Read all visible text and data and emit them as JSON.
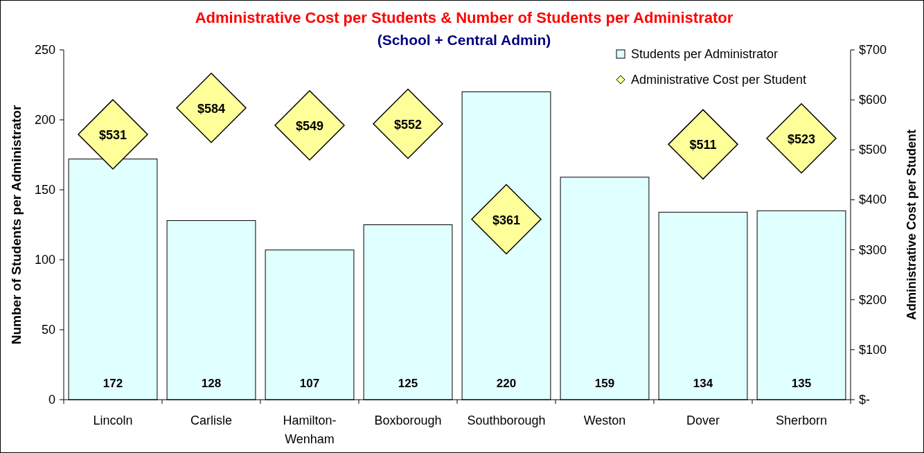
{
  "chart_data": {
    "type": "bar",
    "title": "Administrative Cost per Students & Number of Students per Administrator",
    "subtitle": "(School + Central Admin)",
    "ylabel": "Number of Students per Administrator",
    "y2label": "Administrative Cost per Student",
    "categories": [
      "Lincoln",
      "Carlisle",
      "Hamilton-Wenham",
      "Boxborough",
      "Southborough",
      "Weston",
      "Dover",
      "Sherborn"
    ],
    "series": [
      {
        "name": "Students per Administrator",
        "color": "#e0ffff",
        "values": [
          172,
          128,
          107,
          125,
          220,
          159,
          134,
          135
        ],
        "value_labels": [
          "172",
          "128",
          "107",
          "125",
          "220",
          "159",
          "134",
          "135"
        ]
      },
      {
        "name": "Administrative Cost per Student",
        "type": "scatter",
        "axis": "y2",
        "marker": "diamond",
        "color": "#ffff99",
        "values": [
          531,
          584,
          549,
          552,
          361,
          null,
          511,
          523
        ],
        "value_labels": [
          "$531",
          "$584",
          "$549",
          "$552",
          "$361",
          null,
          "$511",
          "$523"
        ]
      }
    ],
    "ylim": [
      0,
      250
    ],
    "yticks": [
      0,
      50,
      100,
      150,
      200,
      250
    ],
    "y2lim": [
      0,
      700
    ],
    "y2ticks": [
      {
        "value": 0,
        "label": "$-"
      },
      {
        "value": 100,
        "label": "$100"
      },
      {
        "value": 200,
        "label": "$200"
      },
      {
        "value": 300,
        "label": "$300"
      },
      {
        "value": 400,
        "label": "$400"
      },
      {
        "value": 500,
        "label": "$500"
      },
      {
        "value": 600,
        "label": "$600"
      },
      {
        "value": 700,
        "label": "$700"
      }
    ],
    "grid": false,
    "legend": "top right"
  }
}
